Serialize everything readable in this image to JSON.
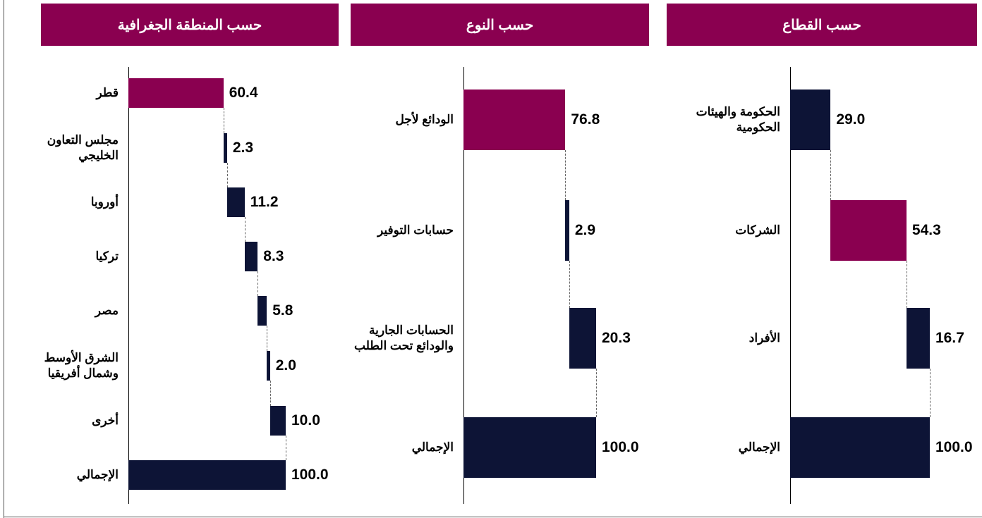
{
  "chart_data": [
    {
      "type": "waterfall",
      "title": "حسب المنطقة الجغرافية",
      "categories": [
        "قطر",
        "مجلس التعاون\nالخليجي",
        "أوروبا",
        "تركيا",
        "مصر",
        "الشرق الأوسط\nوشمال أفريقيا",
        "أخرى",
        "الإجمالي"
      ],
      "values": [
        60.4,
        2.3,
        11.2,
        8.3,
        5.8,
        2.0,
        10.0,
        100.0
      ],
      "value_labels": [
        "60.4",
        "2.3",
        "11.2",
        "8.3",
        "5.8",
        "2.0",
        "10.0",
        "100.0"
      ],
      "measures": [
        "relative",
        "relative",
        "relative",
        "relative",
        "relative",
        "relative",
        "relative",
        "total"
      ],
      "colors": [
        "#8a0050",
        "#0d1436",
        "#0d1436",
        "#0d1436",
        "#0d1436",
        "#0d1436",
        "#0d1436",
        "#0d1436"
      ],
      "xlim": [
        0,
        100
      ]
    },
    {
      "type": "waterfall",
      "title": "حسب النوع",
      "categories": [
        "الودائع لأجل",
        "حسابات التوفير",
        "الحسابات الجارية\nوالودائع تحت الطلب",
        "الإجمالي"
      ],
      "values": [
        76.8,
        2.9,
        20.3,
        100.0
      ],
      "value_labels": [
        "76.8",
        "2.9",
        "20.3",
        "100.0"
      ],
      "measures": [
        "relative",
        "relative",
        "relative",
        "total"
      ],
      "colors": [
        "#8a0050",
        "#0d1436",
        "#0d1436",
        "#0d1436"
      ],
      "xlim": [
        0,
        100
      ]
    },
    {
      "type": "waterfall",
      "title": "حسب القطاع",
      "categories": [
        "الحكومة والهيئات\nالحكومية",
        "الشركات",
        "الأفراد",
        "الإجمالي"
      ],
      "values": [
        29.0,
        54.3,
        16.7,
        100.0
      ],
      "value_labels": [
        "29.0",
        "54.3",
        "16.7",
        "100.0"
      ],
      "measures": [
        "relative",
        "relative",
        "relative",
        "total"
      ],
      "colors": [
        "#0d1436",
        "#8a0050",
        "#0d1436",
        "#0d1436"
      ],
      "xlim": [
        0,
        100
      ]
    }
  ]
}
